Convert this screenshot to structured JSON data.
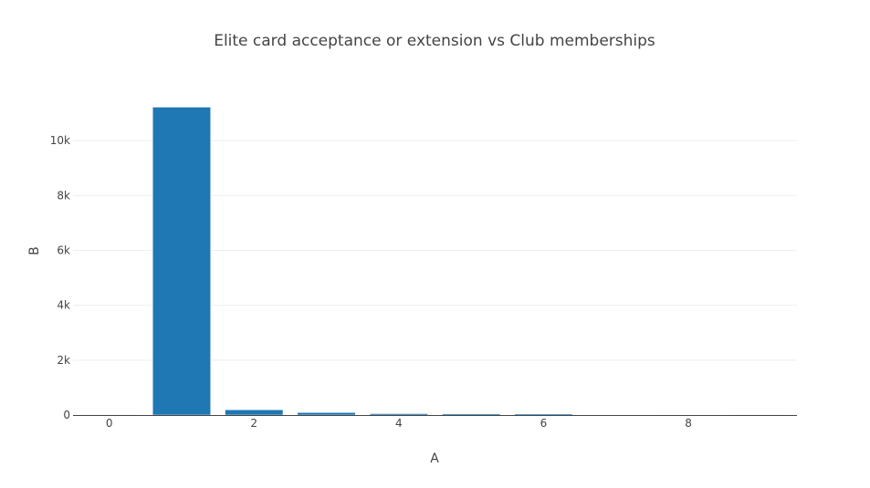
{
  "chart_data": {
    "type": "bar",
    "title": "Elite card acceptance or extension vs Club memberships",
    "xlabel": "A",
    "ylabel": "B",
    "x": [
      0,
      1,
      2,
      3,
      4,
      5,
      6,
      7,
      8,
      9
    ],
    "values": [
      5,
      11220,
      190,
      90,
      50,
      45,
      40,
      15,
      8,
      5
    ],
    "xlim": [
      -0.5,
      9.5
    ],
    "ylim": [
      0,
      11800
    ],
    "x_ticks": [
      0,
      2,
      4,
      6,
      8
    ],
    "x_tick_labels": [
      "0",
      "2",
      "4",
      "6",
      "8"
    ],
    "y_ticks": [
      0,
      2000,
      4000,
      6000,
      8000,
      10000
    ],
    "y_tick_labels": [
      "0",
      "2k",
      "4k",
      "6k",
      "8k",
      "10k"
    ],
    "grid": "horizontal",
    "colors": {
      "bar": "#1f77b4",
      "grid": "#eeeeee",
      "axis": "#444444"
    }
  }
}
